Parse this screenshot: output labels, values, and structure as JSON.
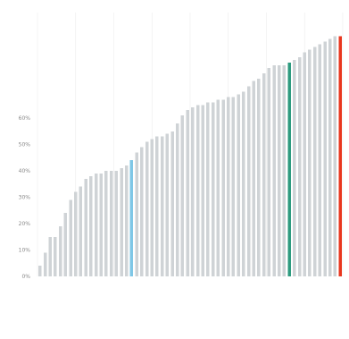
{
  "chart_data": {
    "type": "bar",
    "title": "",
    "xlabel": "",
    "ylabel": "",
    "ylim": [
      0,
      100
    ],
    "yticks": [
      "0%",
      "10%",
      "20%",
      "30%",
      "40%",
      "50%",
      "60%"
    ],
    "ytick_values": [
      0,
      10,
      20,
      30,
      40,
      50,
      60
    ],
    "grid": "vertical",
    "legend": "none",
    "xtick_labels": [
      "",
      "",
      "",
      "",
      "",
      "",
      "",
      ""
    ],
    "values": [
      4,
      9,
      15,
      15,
      19,
      24,
      29,
      32,
      34,
      37,
      38,
      39,
      39,
      40,
      40,
      40,
      41,
      42,
      44,
      47,
      49,
      51,
      52,
      53,
      53,
      54,
      55,
      58,
      61,
      63,
      64,
      65,
      65,
      66,
      66,
      67,
      67,
      68,
      68,
      69,
      70,
      72,
      74,
      75,
      77,
      79,
      80,
      80,
      80,
      81,
      82,
      83,
      85,
      86,
      87,
      88,
      89,
      90,
      91,
      91
    ],
    "highlights": [
      {
        "index": 18,
        "color": "#7fc7e6",
        "value": 44
      },
      {
        "index": 49,
        "color": "#2e9b7f",
        "value": 81
      },
      {
        "index": 59,
        "color": "#e8361e",
        "value": 91
      }
    ],
    "colors": {
      "bars": "#cfd3d6",
      "grid": "#ececec",
      "ticks": "#8a8a8a"
    }
  }
}
